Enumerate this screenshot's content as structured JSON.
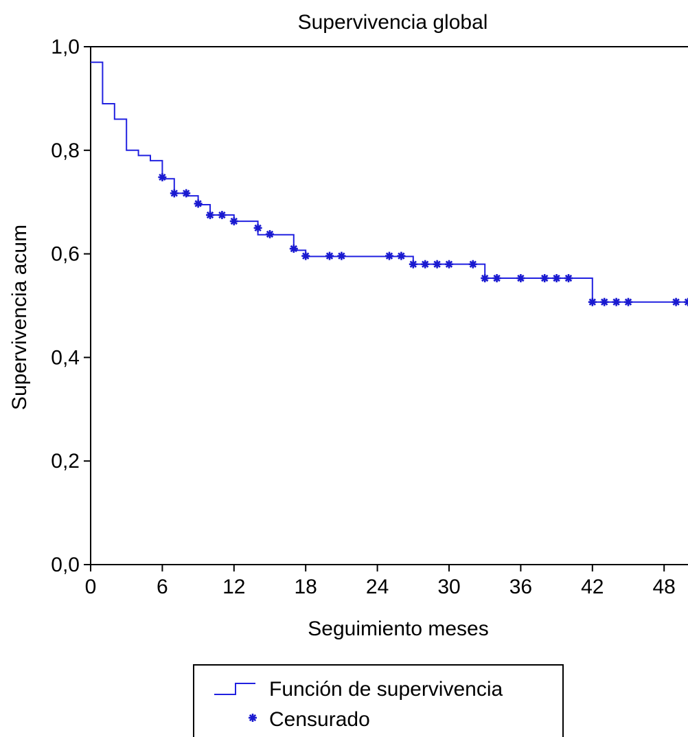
{
  "chart_data": {
    "type": "line",
    "title": "Supervivencia global",
    "xlabel": "Seguimiento meses",
    "ylabel": "Supervivencia acum",
    "xlim": [
      0,
      50
    ],
    "ylim": [
      0,
      1
    ],
    "x_ticks": [
      0,
      6,
      12,
      18,
      24,
      30,
      36,
      42,
      48
    ],
    "x_tick_labels": [
      "0",
      "6",
      "12",
      "18",
      "24",
      "30",
      "36",
      "42",
      "48"
    ],
    "y_ticks": [
      0,
      0.2,
      0.4,
      0.6,
      0.8,
      1.0
    ],
    "y_tick_labels": [
      "0,0",
      "0,2",
      "0,4",
      "0,6",
      "0,8",
      "1,0"
    ],
    "grid": false,
    "legend_position": "bottom-center",
    "series": [
      {
        "name": "Función de supervivencia",
        "color": "#2020e0",
        "step": true,
        "x": [
          0,
          1,
          2,
          3,
          4,
          5,
          6,
          7,
          8,
          9,
          10,
          12,
          14,
          17,
          18,
          27,
          33,
          42,
          50
        ],
        "y": [
          0.97,
          0.89,
          0.86,
          0.8,
          0.79,
          0.78,
          0.745,
          0.717,
          0.712,
          0.695,
          0.675,
          0.663,
          0.637,
          0.607,
          0.595,
          0.58,
          0.553,
          0.507,
          0.507
        ]
      },
      {
        "name": "Censurado",
        "color": "#2020e0",
        "marker": "star",
        "x": [
          6,
          7,
          8,
          9,
          10,
          11,
          12,
          14,
          15,
          17,
          18,
          20,
          21,
          25,
          26,
          27,
          28,
          29,
          30,
          32,
          33,
          34,
          36,
          38,
          39,
          40,
          42,
          43,
          44,
          45,
          49,
          50
        ],
        "y": [
          0.748,
          0.717,
          0.717,
          0.697,
          0.675,
          0.675,
          0.663,
          0.65,
          0.638,
          0.61,
          0.596,
          0.596,
          0.596,
          0.596,
          0.596,
          0.58,
          0.58,
          0.58,
          0.58,
          0.58,
          0.553,
          0.553,
          0.553,
          0.553,
          0.553,
          0.553,
          0.507,
          0.507,
          0.507,
          0.507,
          0.507,
          0.507
        ]
      }
    ]
  }
}
